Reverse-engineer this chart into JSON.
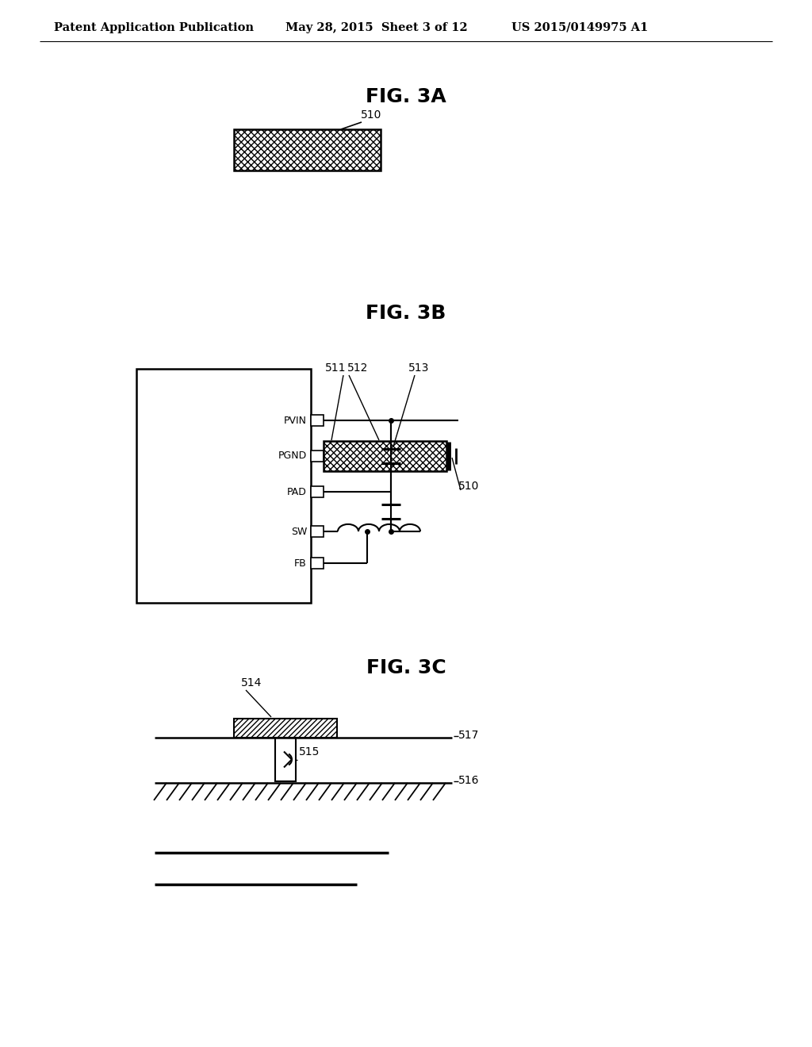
{
  "header_left": "Patent Application Publication",
  "header_mid": "May 28, 2015  Sheet 3 of 12",
  "header_right": "US 2015/0149975 A1",
  "fig3a_title": "FIG. 3A",
  "fig3b_title": "FIG. 3B",
  "fig3c_title": "FIG. 3C",
  "label_510": "510",
  "label_511": "511",
  "label_512": "512",
  "label_513": "513",
  "label_514": "514",
  "label_515": "515",
  "label_516": "516",
  "label_517": "517",
  "pin_labels_3b": [
    "PVIN",
    "PGND",
    "PAD",
    "SW",
    "FB"
  ],
  "bg_color": "#ffffff",
  "line_color": "#000000",
  "font_size_header": 10.5,
  "font_size_fig": 18,
  "font_size_label": 10,
  "font_size_pin": 9
}
